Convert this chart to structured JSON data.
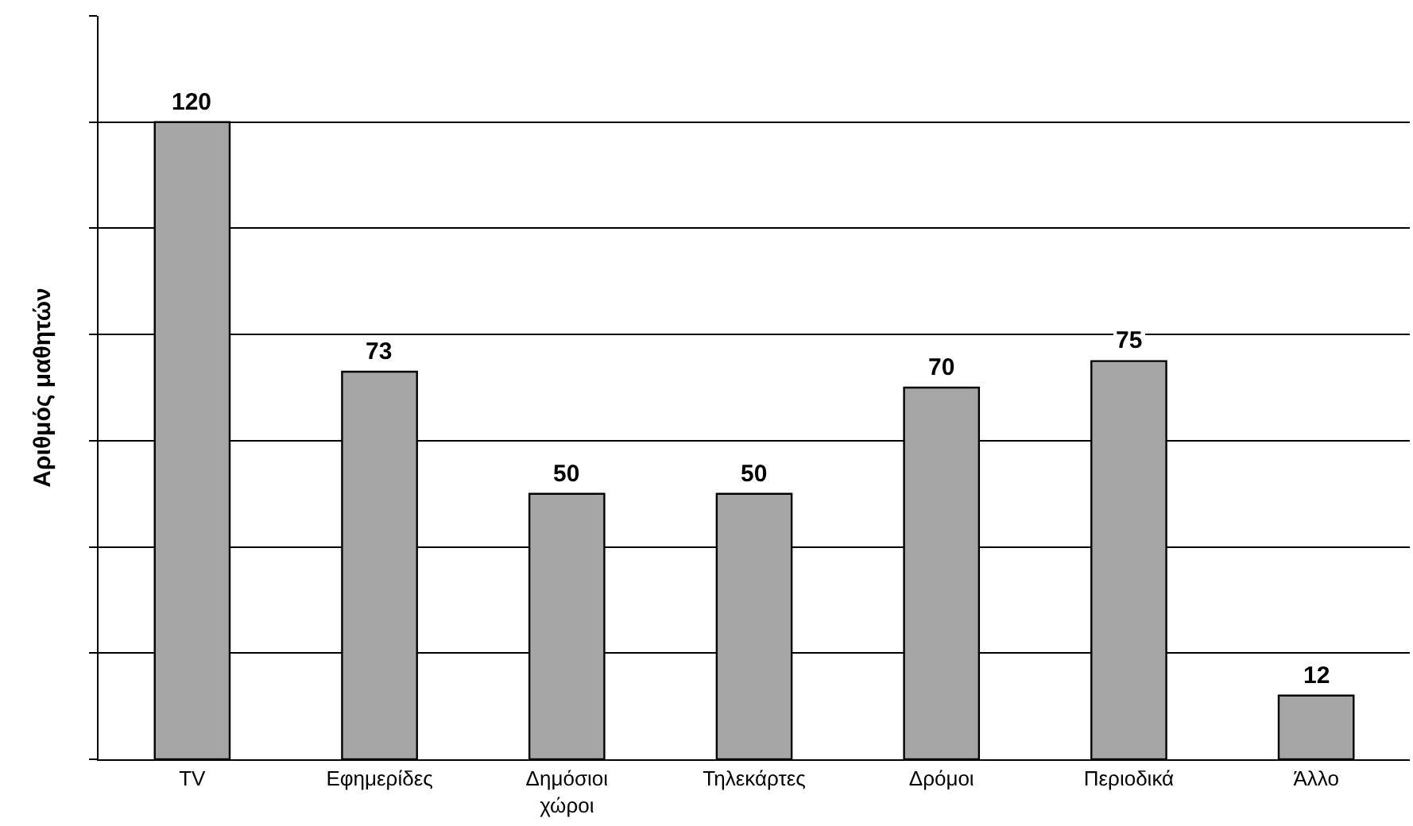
{
  "chart_data": {
    "type": "bar",
    "ylabel": "Αριθμός μαθητών",
    "categories": [
      "TV",
      "Εφημερίδες",
      "Δημόσιοι\nχώροι",
      "Τηλεκάρτες",
      "Δρόμοι",
      "Περιοδικά",
      "Άλλο"
    ],
    "values": [
      120,
      73,
      50,
      50,
      70,
      75,
      12
    ],
    "color": "#a6a6a6",
    "data_labels": true,
    "ylim": [
      0,
      140
    ],
    "yticks": [
      {
        "value": 0,
        "label": null
      },
      {
        "value": 20,
        "label": null
      },
      {
        "value": 40,
        "label": null
      },
      {
        "value": 60,
        "label": null
      },
      {
        "value": 80,
        "label": null
      },
      {
        "value": 100,
        "label": null
      },
      {
        "value": 120,
        "label": null
      },
      {
        "value": 140,
        "label": null
      }
    ],
    "grid": "y",
    "tick_labels": "x",
    "legend": false
  }
}
